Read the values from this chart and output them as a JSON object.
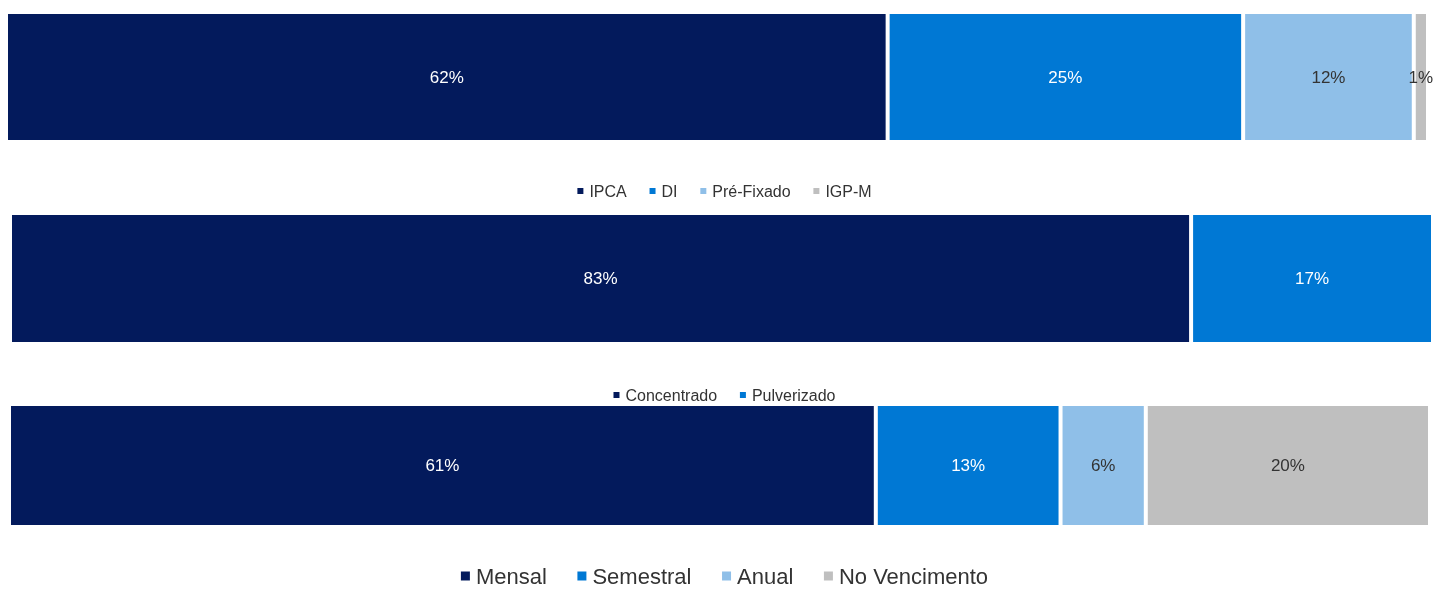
{
  "chart_data": [
    {
      "type": "bar",
      "orientation": "horizontal",
      "stacked": true,
      "categories": [
        null
      ],
      "tick_labels": false,
      "legend": "bottom",
      "series": [
        {
          "name": "IPCA",
          "color": "#031a5c",
          "values": [
            62
          ],
          "value_labels": [
            "62%"
          ]
        },
        {
          "name": "DI",
          "color": "#0078d4",
          "values": [
            25
          ],
          "value_labels": [
            "25%"
          ]
        },
        {
          "name": "Pré-Fixado",
          "color": "#8fbfe8",
          "values": [
            12
          ],
          "value_labels": [
            "12%"
          ]
        },
        {
          "name": "IGP-M",
          "color": "#bfbfbf",
          "values": [
            1
          ],
          "value_labels": [
            "1%"
          ]
        }
      ]
    },
    {
      "type": "bar",
      "orientation": "horizontal",
      "stacked": true,
      "categories": [
        null
      ],
      "tick_labels": false,
      "legend": "bottom",
      "series": [
        {
          "name": "Concentrado",
          "color": "#031a5c",
          "values": [
            83
          ],
          "value_labels": [
            "83%"
          ]
        },
        {
          "name": "Pulverizado",
          "color": "#0078d4",
          "values": [
            17
          ],
          "value_labels": [
            "17%"
          ]
        }
      ]
    },
    {
      "type": "bar",
      "orientation": "horizontal",
      "stacked": true,
      "categories": [
        null
      ],
      "tick_labels": false,
      "legend": "bottom",
      "series": [
        {
          "name": "Mensal",
          "color": "#031a5c",
          "values": [
            61
          ],
          "value_labels": [
            "61%"
          ]
        },
        {
          "name": "Semestral",
          "color": "#0078d4",
          "values": [
            13
          ],
          "value_labels": [
            "13%"
          ]
        },
        {
          "name": "Anual",
          "color": "#8fbfe8",
          "values": [
            6
          ],
          "value_labels": [
            "6%"
          ]
        },
        {
          "name": "No Vencimento",
          "color": "#bfbfbf",
          "values": [
            20
          ],
          "value_labels": [
            "20%"
          ]
        }
      ]
    }
  ]
}
